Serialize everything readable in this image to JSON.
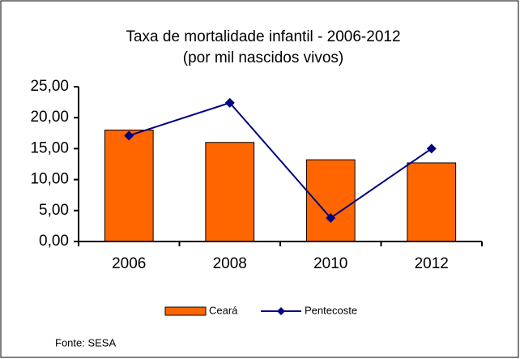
{
  "chart_data": {
    "type": "bar",
    "title": "Taxa de mortalidade infantil - 2006-2012",
    "subtitle": "(por mil nascidos vivos)",
    "categories": [
      "2006",
      "2008",
      "2010",
      "2012"
    ],
    "series": [
      {
        "name": "Ceará",
        "color": "#ff6600",
        "type": "bar",
        "values": [
          18.0,
          16.0,
          13.2,
          12.7
        ]
      },
      {
        "name": "Pentecoste",
        "color": "#000080",
        "type": "line",
        "values": [
          17.1,
          22.4,
          3.8,
          15.0
        ]
      }
    ],
    "ylim": [
      0,
      25
    ],
    "yticks": [
      {
        "value": 0,
        "label": "0,00"
      },
      {
        "value": 5,
        "label": "5,00"
      },
      {
        "value": 10,
        "label": "10,00"
      },
      {
        "value": 15,
        "label": "15,00"
      },
      {
        "value": 20,
        "label": "20,00"
      },
      {
        "value": 25,
        "label": "25,00"
      }
    ],
    "legend": "bottom",
    "note": "Fonte: SESA"
  }
}
